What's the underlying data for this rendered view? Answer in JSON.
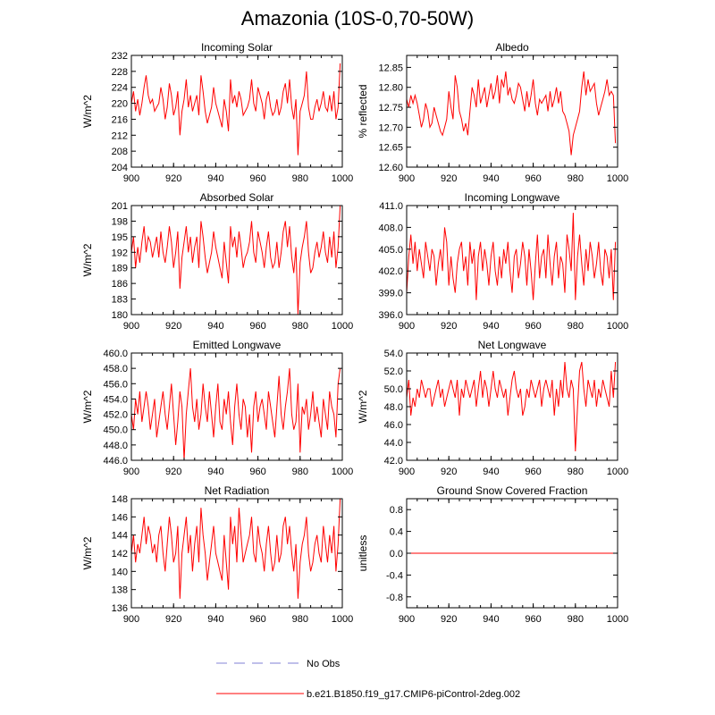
{
  "title": "Amazonia (10S-0,70-50W)",
  "legend": [
    {
      "label": "No Obs",
      "color": "#9999dd",
      "style": "dashed"
    },
    {
      "label": "b.e21.B1850.f19_g17.CMIP6-piControl-2deg.002",
      "color": "#ff0000",
      "style": "solid"
    }
  ],
  "chart_data": [
    {
      "type": "line",
      "title": "Incoming Solar",
      "xlabel": "",
      "ylabel": "W/m^2",
      "xlim": [
        900,
        1000
      ],
      "ylim": [
        204,
        232
      ],
      "xticks": [
        "900",
        "920",
        "940",
        "960",
        "980",
        "1000"
      ],
      "yticks": [
        "204",
        "208",
        "212",
        "216",
        "220",
        "224",
        "228",
        "232"
      ],
      "x_start": 900,
      "x_step": 1,
      "color": "#ff0000",
      "values": [
        220,
        223,
        218,
        221,
        217,
        220,
        224,
        227,
        222,
        220,
        221,
        218,
        219,
        220,
        224,
        221,
        216,
        219,
        225,
        222,
        217,
        219,
        223,
        212,
        218,
        221,
        226,
        219,
        222,
        218,
        220,
        222,
        217,
        227,
        223,
        218,
        215,
        217,
        219,
        224,
        220,
        218,
        216,
        214,
        221,
        218,
        213,
        226,
        220,
        222,
        219,
        223,
        221,
        217,
        218,
        219,
        221,
        226,
        220,
        218,
        224,
        222,
        220,
        216,
        221,
        223,
        219,
        217,
        218,
        221,
        217,
        219,
        223,
        225,
        220,
        226,
        219,
        216,
        221,
        207,
        218,
        220,
        222,
        228,
        219,
        216,
        216,
        219,
        221,
        218,
        220,
        223,
        219,
        218,
        222,
        218,
        223,
        216,
        219,
        230
      ]
    },
    {
      "type": "line",
      "title": "Albedo",
      "xlabel": "",
      "ylabel": "% reflected",
      "xlim": [
        900,
        1000
      ],
      "ylim": [
        12.6,
        12.88
      ],
      "xticks": [
        "900",
        "920",
        "940",
        "960",
        "980",
        "1000"
      ],
      "yticks": [
        "12.60",
        "12.65",
        "12.70",
        "12.75",
        "12.80",
        "12.85"
      ],
      "x_start": 900,
      "x_step": 1,
      "color": "#ff0000",
      "values": [
        12.77,
        12.75,
        12.78,
        12.76,
        12.78,
        12.76,
        12.73,
        12.7,
        12.72,
        12.76,
        12.74,
        12.7,
        12.71,
        12.75,
        12.73,
        12.71,
        12.69,
        12.68,
        12.7,
        12.72,
        12.79,
        12.75,
        12.72,
        12.83,
        12.8,
        12.74,
        12.72,
        12.69,
        12.71,
        12.68,
        12.74,
        12.8,
        12.78,
        12.75,
        12.82,
        12.76,
        12.78,
        12.8,
        12.75,
        12.78,
        12.81,
        12.77,
        12.79,
        12.83,
        12.76,
        12.82,
        12.8,
        12.84,
        12.78,
        12.8,
        12.77,
        12.76,
        12.78,
        12.81,
        12.8,
        12.77,
        12.74,
        12.79,
        12.75,
        12.78,
        12.82,
        12.76,
        12.73,
        12.77,
        12.76,
        12.77,
        12.78,
        12.74,
        12.79,
        12.75,
        12.77,
        12.8,
        12.76,
        12.79,
        12.74,
        12.73,
        12.71,
        12.69,
        12.63,
        12.68,
        12.7,
        12.72,
        12.74,
        12.8,
        12.84,
        12.78,
        12.82,
        12.79,
        12.8,
        12.81,
        12.76,
        12.73,
        12.75,
        12.77,
        12.79,
        12.82,
        12.78,
        12.79,
        12.78,
        12.66
      ]
    },
    {
      "type": "line",
      "title": "Absorbed Solar",
      "xlabel": "",
      "ylabel": "W/m^2",
      "xlim": [
        900,
        1000
      ],
      "ylim": [
        180,
        201
      ],
      "xticks": [
        "900",
        "920",
        "940",
        "960",
        "980",
        "1000"
      ],
      "yticks": [
        "180",
        "183",
        "186",
        "189",
        "192",
        "195",
        "198",
        "201"
      ],
      "x_start": 900,
      "x_step": 1,
      "color": "#ff0000",
      "values": [
        192,
        195,
        189,
        193,
        190,
        194,
        197,
        192,
        195,
        194,
        191,
        193,
        195,
        191,
        196,
        192,
        190,
        193,
        197,
        194,
        189,
        192,
        196,
        185,
        191,
        194,
        197,
        192,
        195,
        190,
        193,
        195,
        189,
        198,
        195,
        191,
        188,
        190,
        192,
        196,
        193,
        191,
        189,
        187,
        194,
        190,
        186,
        197,
        193,
        195,
        191,
        196,
        193,
        189,
        191,
        192,
        194,
        198,
        192,
        190,
        196,
        194,
        192,
        189,
        193,
        196,
        191,
        189,
        190,
        194,
        189,
        192,
        196,
        198,
        193,
        197,
        191,
        188,
        193,
        180,
        190,
        193,
        195,
        198,
        192,
        188,
        189,
        192,
        194,
        191,
        193,
        196,
        192,
        190,
        195,
        191,
        196,
        189,
        193,
        201
      ]
    },
    {
      "type": "line",
      "title": "Incoming Longwave",
      "xlabel": "",
      "ylabel": "",
      "xlim": [
        900,
        1000
      ],
      "ylim": [
        396,
        411
      ],
      "xticks": [
        "900",
        "920",
        "940",
        "960",
        "980",
        "1000"
      ],
      "yticks": [
        "396.0",
        "399.0",
        "402.0",
        "405.0",
        "408.0",
        "411.0"
      ],
      "x_start": 900,
      "x_step": 1,
      "color": "#ff0000",
      "values": [
        399,
        404,
        407,
        403,
        406,
        402,
        405,
        403,
        401,
        406,
        404,
        402,
        405,
        404,
        400,
        403,
        405,
        402,
        408,
        406,
        400,
        404,
        401,
        399,
        403,
        405,
        406,
        402,
        404,
        400,
        406,
        403,
        405,
        398,
        404,
        406,
        402,
        405,
        403,
        400,
        404,
        406,
        402,
        400,
        404,
        401,
        405,
        403,
        406,
        402,
        399,
        404,
        405,
        401,
        403,
        406,
        404,
        400,
        405,
        402,
        398,
        403,
        407,
        401,
        404,
        405,
        401,
        407,
        403,
        400,
        404,
        406,
        401,
        404,
        403,
        399,
        407,
        405,
        402,
        410,
        398,
        404,
        407,
        403,
        400,
        405,
        402,
        406,
        404,
        401,
        403,
        406,
        402,
        400,
        405,
        404,
        401,
        405,
        398,
        406
      ]
    },
    {
      "type": "line",
      "title": "Emitted Longwave",
      "xlabel": "",
      "ylabel": "W/m^2",
      "xlim": [
        900,
        1000
      ],
      "ylim": [
        446,
        460
      ],
      "xticks": [
        "900",
        "920",
        "940",
        "960",
        "980",
        "1000"
      ],
      "yticks": [
        "446.0",
        "448.0",
        "450.0",
        "452.0",
        "454.0",
        "456.0",
        "458.0",
        "460.0"
      ],
      "x_start": 900,
      "x_step": 1,
      "color": "#ff0000",
      "values": [
        452,
        450,
        454,
        452,
        455,
        451,
        453,
        455,
        453,
        450,
        452,
        454,
        449,
        451,
        453,
        455,
        452,
        450,
        453,
        456,
        452,
        448,
        451,
        455,
        453,
        446,
        452,
        455,
        458,
        453,
        451,
        454,
        450,
        452,
        456,
        453,
        451,
        455,
        452,
        449,
        453,
        456,
        451,
        450,
        454,
        452,
        455,
        451,
        448,
        453,
        456,
        452,
        450,
        454,
        453,
        449,
        452,
        447,
        453,
        455,
        451,
        453,
        454,
        452,
        450,
        455,
        453,
        451,
        449,
        453,
        457,
        452,
        450,
        453,
        455,
        458,
        452,
        450,
        451,
        456,
        447,
        453,
        452,
        454,
        450,
        452,
        455,
        451,
        453,
        451,
        449,
        454,
        452,
        450,
        455,
        453,
        452,
        449,
        456,
        458
      ]
    },
    {
      "type": "line",
      "title": "Net Longwave",
      "xlabel": "",
      "ylabel": "W/m^2",
      "xlim": [
        900,
        1000
      ],
      "ylim": [
        42,
        54
      ],
      "xticks": [
        "900",
        "920",
        "940",
        "960",
        "980",
        "1000"
      ],
      "yticks": [
        "42.0",
        "44.0",
        "46.0",
        "48.0",
        "50.0",
        "52.0",
        "54.0"
      ],
      "x_start": 900,
      "x_step": 1,
      "color": "#ff0000",
      "values": [
        49,
        51,
        47,
        49,
        48,
        50,
        49,
        51,
        50,
        49,
        50,
        50,
        48,
        49,
        50,
        51,
        49,
        50,
        48,
        49,
        50,
        51,
        50,
        49,
        51,
        47,
        50,
        49,
        51,
        50,
        49,
        50,
        51,
        48,
        50,
        52,
        49,
        51,
        50,
        48,
        50,
        52,
        50,
        49,
        51,
        50,
        49,
        50,
        47,
        49,
        51,
        52,
        50,
        49,
        50,
        47,
        48,
        50,
        49,
        51,
        50,
        49,
        50,
        51,
        48,
        50,
        51,
        50,
        49,
        51,
        47,
        50,
        48,
        51,
        49,
        53,
        50,
        49,
        51,
        50,
        43,
        48,
        52,
        53,
        50,
        48,
        51,
        50,
        49,
        51,
        48,
        50,
        49,
        51,
        50,
        49,
        48,
        52,
        49,
        53
      ]
    },
    {
      "type": "line",
      "title": "Net Radiation",
      "xlabel": "",
      "ylabel": "W/m^2",
      "xlim": [
        900,
        1000
      ],
      "ylim": [
        136,
        148
      ],
      "xticks": [
        "900",
        "920",
        "940",
        "960",
        "980",
        "1000"
      ],
      "yticks": [
        "136",
        "138",
        "140",
        "142",
        "144",
        "146",
        "148"
      ],
      "x_start": 900,
      "x_step": 1,
      "color": "#ff0000",
      "values": [
        142,
        144,
        141,
        143,
        142,
        144,
        146,
        143,
        145,
        144,
        142,
        143,
        141,
        144,
        145,
        142,
        140,
        143,
        146,
        144,
        141,
        142,
        145,
        137,
        142,
        144,
        146,
        142,
        144,
        140,
        143,
        145,
        141,
        147,
        144,
        142,
        139,
        141,
        143,
        145,
        142,
        141,
        140,
        139,
        144,
        141,
        138,
        146,
        143,
        145,
        141,
        147,
        144,
        141,
        142,
        143,
        144,
        146,
        142,
        141,
        145,
        143,
        142,
        140,
        143,
        145,
        142,
        140,
        141,
        144,
        141,
        142,
        145,
        146,
        143,
        145,
        142,
        140,
        143,
        137,
        141,
        143,
        144,
        146,
        142,
        140,
        141,
        143,
        144,
        142,
        141,
        145,
        143,
        141,
        144,
        142,
        145,
        140,
        143,
        148
      ]
    },
    {
      "type": "line",
      "title": "Ground Snow Covered Fraction",
      "xlabel": "",
      "ylabel": "unitless",
      "xlim": [
        900,
        1000
      ],
      "ylim": [
        -1,
        1
      ],
      "xticks": [
        "900",
        "920",
        "940",
        "960",
        "980",
        "1000"
      ],
      "yticks": [
        "-0.8",
        "-0.4",
        "0.0",
        "0.4",
        "0.8"
      ],
      "x_start": 900,
      "x_step": 1,
      "color": "#ff0000",
      "values": [
        0,
        0,
        0,
        0,
        0,
        0,
        0,
        0,
        0,
        0,
        0,
        0,
        0,
        0,
        0,
        0,
        0,
        0,
        0,
        0,
        0,
        0,
        0,
        0,
        0,
        0,
        0,
        0,
        0,
        0,
        0,
        0,
        0,
        0,
        0,
        0,
        0,
        0,
        0,
        0,
        0,
        0,
        0,
        0,
        0,
        0,
        0,
        0,
        0,
        0,
        0,
        0,
        0,
        0,
        0,
        0,
        0,
        0,
        0,
        0,
        0,
        0,
        0,
        0,
        0,
        0,
        0,
        0,
        0,
        0,
        0,
        0,
        0,
        0,
        0,
        0,
        0,
        0,
        0,
        0,
        0,
        0,
        0,
        0,
        0,
        0,
        0,
        0,
        0,
        0,
        0,
        0,
        0,
        0,
        0,
        0,
        0,
        0,
        0,
        0
      ]
    }
  ]
}
